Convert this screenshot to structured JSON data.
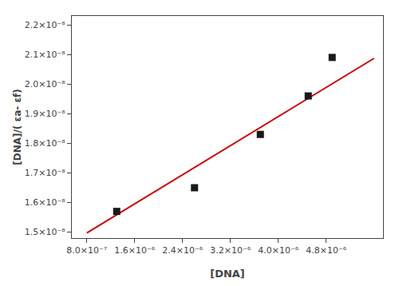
{
  "chart_data": {
    "type": "scatter",
    "xlabel": "[DNA]",
    "ylabel": "[DNA]/( εa- εf)",
    "series": [
      {
        "type": "line",
        "color": "#cc0000",
        "x": [
          8e-07,
          5.6e-06
        ],
        "values": [
          1.497e-08,
          2.087e-08
        ]
      },
      {
        "type": "scatter",
        "color": "#1a1a1a",
        "marker": "square",
        "x": [
          1.3e-06,
          2.6e-06,
          3.7e-06,
          4.5e-06,
          4.9e-06
        ],
        "values": [
          1.57e-08,
          1.65e-08,
          1.83e-08,
          1.96e-08,
          2.09e-08
        ]
      }
    ],
    "xlim": [
      5.5e-07,
      5.75e-06
    ],
    "ylim": [
      1.48e-08,
      2.23e-08
    ],
    "xticks": [
      {
        "value": 8e-07,
        "label": "8.0×10⁻⁷"
      },
      {
        "value": 1.6e-06,
        "label": "1.6×10⁻⁶"
      },
      {
        "value": 2.4e-06,
        "label": "2.4×10⁻⁶"
      },
      {
        "value": 3.2e-06,
        "label": "3.2×10⁻⁶"
      },
      {
        "value": 4e-06,
        "label": "4.0×10⁻⁶"
      },
      {
        "value": 4.8e-06,
        "label": "4.8×10⁻⁶"
      }
    ],
    "yticks": [
      {
        "value": 1.5e-08,
        "label": "1.5×10⁻⁸"
      },
      {
        "value": 1.6e-08,
        "label": "1.6×10⁻⁸"
      },
      {
        "value": 1.7e-08,
        "label": "1.7×10⁻⁸"
      },
      {
        "value": 1.8e-08,
        "label": "1.8×10⁻⁸"
      },
      {
        "value": 1.9e-08,
        "label": "1.9×10⁻⁸"
      },
      {
        "value": 2e-08,
        "label": "2.0×10⁻⁸"
      },
      {
        "value": 2.1e-08,
        "label": "2.1×10⁻⁸"
      },
      {
        "value": 2.2e-08,
        "label": "2.2×10⁻⁸"
      }
    ],
    "grid": false
  }
}
